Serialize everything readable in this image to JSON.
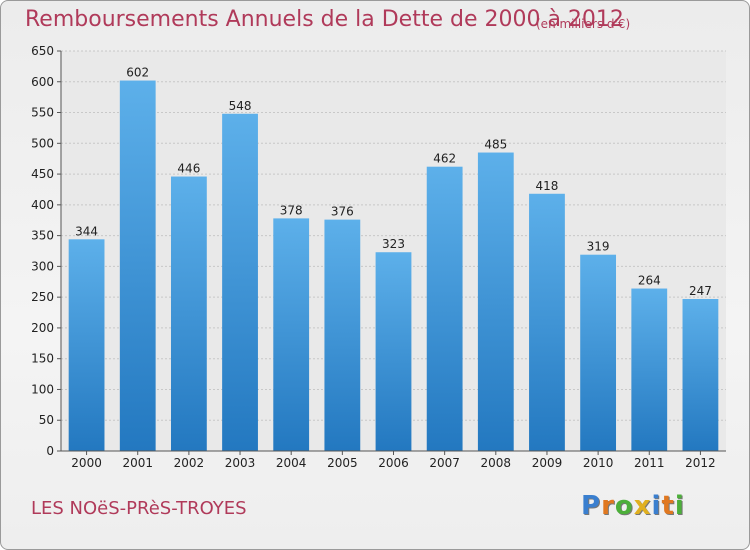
{
  "header": {
    "title": "Remboursements Annuels de la Dette de 2000 à 2012",
    "subtitle": "(en milliers d'€)"
  },
  "footer": {
    "commune": "LES NOëS-PRèS-TROYES",
    "logo_letters": [
      {
        "ch": "P",
        "color": "#3a7fcf"
      },
      {
        "ch": "r",
        "color": "#e07820"
      },
      {
        "ch": "o",
        "color": "#4caf3a"
      },
      {
        "ch": "x",
        "color": "#e0b020"
      },
      {
        "ch": "i",
        "color": "#3a7fcf"
      },
      {
        "ch": "t",
        "color": "#e07820"
      },
      {
        "ch": "i",
        "color": "#4caf3a"
      }
    ]
  },
  "chart_data": {
    "type": "bar",
    "title": "Remboursements Annuels de la Dette de 2000 à 2012",
    "subtitle": "(en milliers d'€)",
    "categories": [
      "2000",
      "2001",
      "2002",
      "2003",
      "2004",
      "2005",
      "2006",
      "2007",
      "2008",
      "2009",
      "2010",
      "2011",
      "2012"
    ],
    "values": [
      344,
      602,
      446,
      548,
      378,
      376,
      323,
      462,
      485,
      418,
      319,
      264,
      247
    ],
    "ylim": [
      0,
      650
    ],
    "yticks": [
      0,
      50,
      100,
      150,
      200,
      250,
      300,
      350,
      400,
      450,
      500,
      550,
      600,
      650
    ],
    "grid": true,
    "bar_color": "#3b8fd6"
  }
}
